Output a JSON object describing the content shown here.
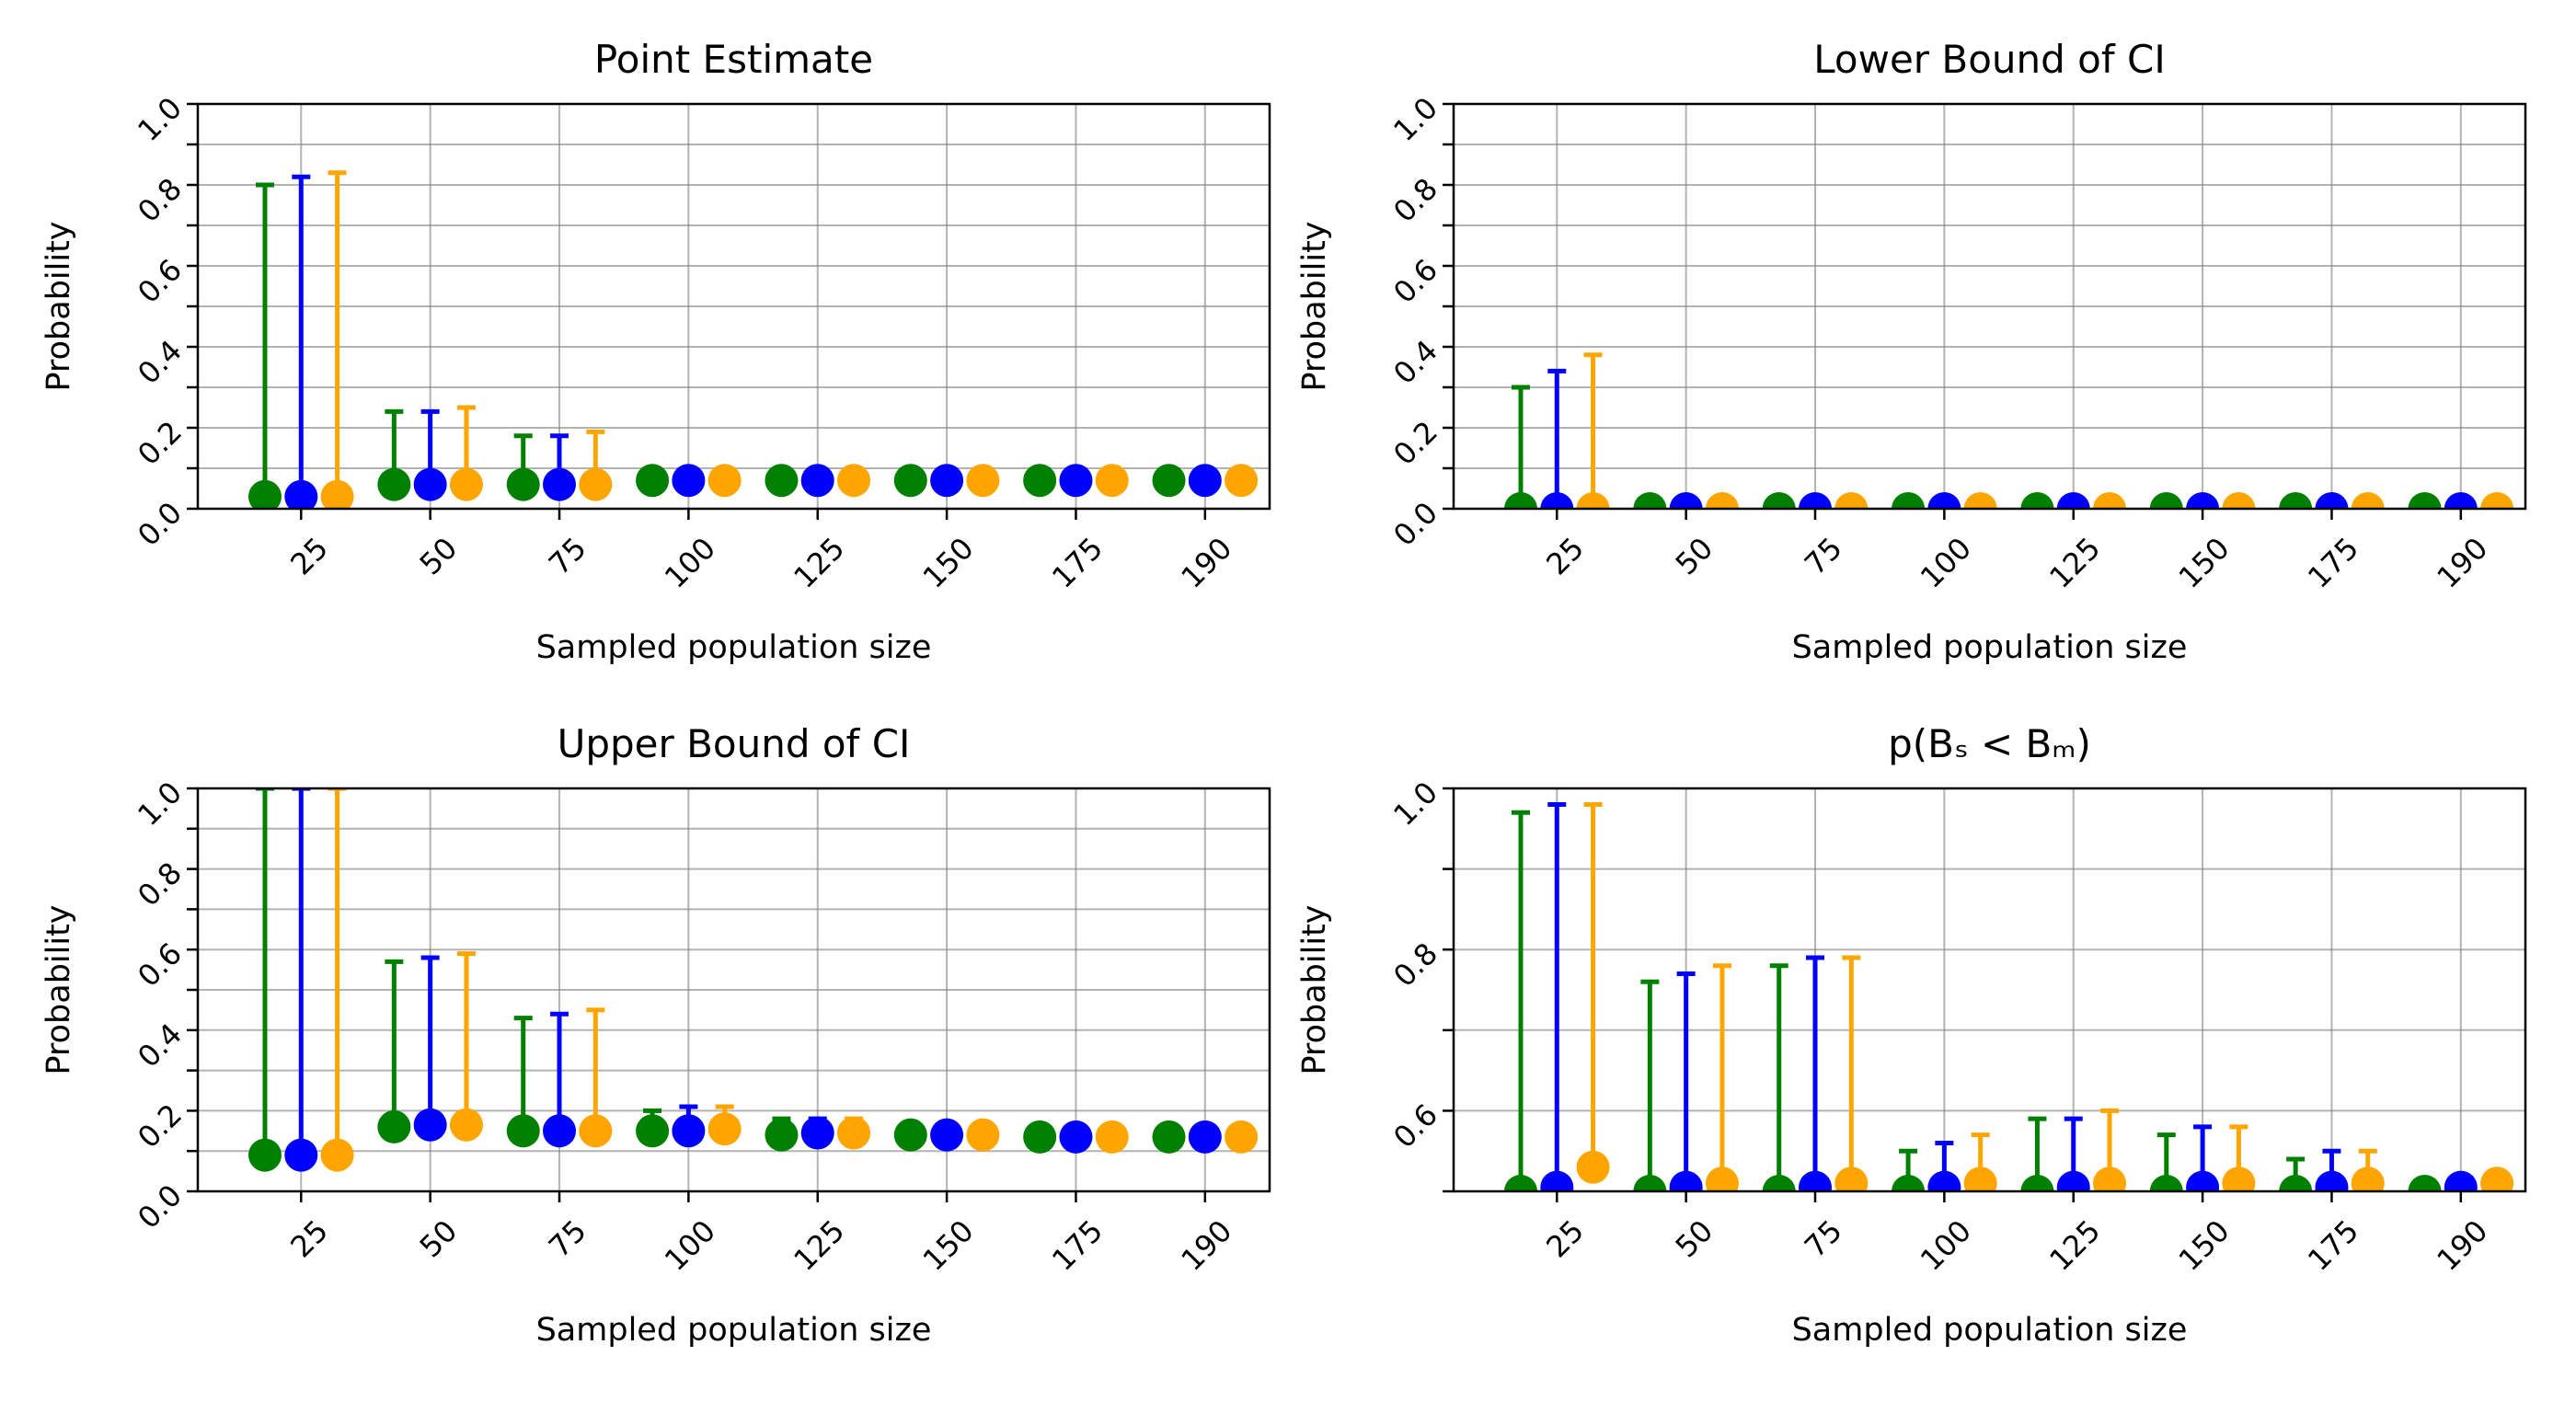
{
  "colors": {
    "series": [
      "#008000",
      "#0000ff",
      "#ffa500"
    ],
    "grid": "#808080",
    "axis": "#000000"
  },
  "chart_data": [
    {
      "type": "scatter",
      "title": "Point Estimate",
      "xlabel": "Sampled population size",
      "ylabel": "Probability",
      "categories": [
        "25",
        "50",
        "75",
        "100",
        "125",
        "150",
        "175",
        "190"
      ],
      "ylim": [
        0.0,
        1.0
      ],
      "yticks": [
        "0.0",
        "0.2",
        "0.4",
        "0.6",
        "0.8",
        "1.0"
      ],
      "yticks_minor": [
        0.1,
        0.3,
        0.5,
        0.7,
        0.9
      ],
      "grid": true,
      "series": [
        {
          "values": [
            0.03,
            0.06,
            0.06,
            0.07,
            0.07,
            0.07,
            0.07,
            0.07
          ],
          "upper": [
            0.8,
            0.24,
            0.18,
            0.07,
            0.07,
            0.07,
            0.07,
            0.07
          ]
        },
        {
          "values": [
            0.03,
            0.06,
            0.06,
            0.07,
            0.07,
            0.07,
            0.07,
            0.07
          ],
          "upper": [
            0.82,
            0.24,
            0.18,
            0.07,
            0.07,
            0.07,
            0.07,
            0.07
          ]
        },
        {
          "values": [
            0.03,
            0.06,
            0.06,
            0.07,
            0.07,
            0.07,
            0.07,
            0.07
          ],
          "upper": [
            0.83,
            0.25,
            0.19,
            0.07,
            0.07,
            0.07,
            0.07,
            0.07
          ]
        }
      ]
    },
    {
      "type": "scatter",
      "title": "Lower Bound of CI",
      "xlabel": "Sampled population size",
      "ylabel": "Probability",
      "categories": [
        "25",
        "50",
        "75",
        "100",
        "125",
        "150",
        "175",
        "190"
      ],
      "ylim": [
        0.0,
        1.0
      ],
      "yticks": [
        "0.0",
        "0.2",
        "0.4",
        "0.6",
        "0.8",
        "1.0"
      ],
      "yticks_minor": [
        0.1,
        0.3,
        0.5,
        0.7,
        0.9
      ],
      "grid": true,
      "series": [
        {
          "values": [
            0.0,
            0.0,
            0.0,
            0.0,
            0.0,
            0.0,
            0.0,
            0.0
          ],
          "upper": [
            0.3,
            0.0,
            0.0,
            0.0,
            0.0,
            0.0,
            0.0,
            0.0
          ]
        },
        {
          "values": [
            0.0,
            0.0,
            0.0,
            0.0,
            0.0,
            0.0,
            0.0,
            0.0
          ],
          "upper": [
            0.34,
            0.0,
            0.0,
            0.0,
            0.0,
            0.0,
            0.0,
            0.0
          ]
        },
        {
          "values": [
            0.0,
            0.0,
            0.0,
            0.0,
            0.0,
            0.0,
            0.0,
            0.0
          ],
          "upper": [
            0.38,
            0.0,
            0.0,
            0.0,
            0.0,
            0.0,
            0.0,
            0.0
          ]
        }
      ]
    },
    {
      "type": "scatter",
      "title": "Upper Bound of CI",
      "xlabel": "Sampled population size",
      "ylabel": "Probability",
      "categories": [
        "25",
        "50",
        "75",
        "100",
        "125",
        "150",
        "175",
        "190"
      ],
      "ylim": [
        0.0,
        1.0
      ],
      "yticks": [
        "0.0",
        "0.2",
        "0.4",
        "0.6",
        "0.8",
        "1.0"
      ],
      "yticks_minor": [
        0.1,
        0.3,
        0.5,
        0.7,
        0.9
      ],
      "grid": true,
      "series": [
        {
          "values": [
            0.09,
            0.16,
            0.15,
            0.15,
            0.14,
            0.14,
            0.135,
            0.135
          ],
          "upper": [
            1.0,
            0.57,
            0.43,
            0.2,
            0.18,
            0.14,
            0.135,
            0.135
          ]
        },
        {
          "values": [
            0.09,
            0.165,
            0.15,
            0.15,
            0.145,
            0.14,
            0.135,
            0.135
          ],
          "upper": [
            1.0,
            0.58,
            0.44,
            0.21,
            0.18,
            0.14,
            0.135,
            0.135
          ]
        },
        {
          "values": [
            0.09,
            0.165,
            0.15,
            0.155,
            0.145,
            0.14,
            0.135,
            0.135
          ],
          "upper": [
            1.0,
            0.59,
            0.45,
            0.21,
            0.18,
            0.14,
            0.135,
            0.135
          ]
        }
      ]
    },
    {
      "type": "scatter",
      "title": "p(Bₛ < Bₘ)",
      "xlabel": "Sampled population size",
      "ylabel": "Probability",
      "categories": [
        "25",
        "50",
        "75",
        "100",
        "125",
        "150",
        "175",
        "190"
      ],
      "ylim": [
        0.5,
        1.0
      ],
      "yticks": [
        "0.6",
        "0.8",
        "1.0"
      ],
      "ytick_values": [
        0.6,
        0.8,
        1.0
      ],
      "yticks_minor": [
        0.5,
        0.7,
        0.9
      ],
      "grid": true,
      "series": [
        {
          "values": [
            0.5,
            0.5,
            0.5,
            0.5,
            0.5,
            0.5,
            0.5,
            0.5
          ],
          "upper": [
            0.97,
            0.76,
            0.78,
            0.55,
            0.59,
            0.57,
            0.54,
            0.5
          ]
        },
        {
          "values": [
            0.505,
            0.505,
            0.505,
            0.505,
            0.505,
            0.505,
            0.505,
            0.505
          ],
          "upper": [
            0.98,
            0.77,
            0.79,
            0.56,
            0.59,
            0.58,
            0.55,
            0.505
          ]
        },
        {
          "values": [
            0.53,
            0.51,
            0.51,
            0.51,
            0.51,
            0.51,
            0.51,
            0.51
          ],
          "upper": [
            0.98,
            0.78,
            0.79,
            0.57,
            0.6,
            0.58,
            0.55,
            0.51
          ]
        }
      ]
    }
  ]
}
